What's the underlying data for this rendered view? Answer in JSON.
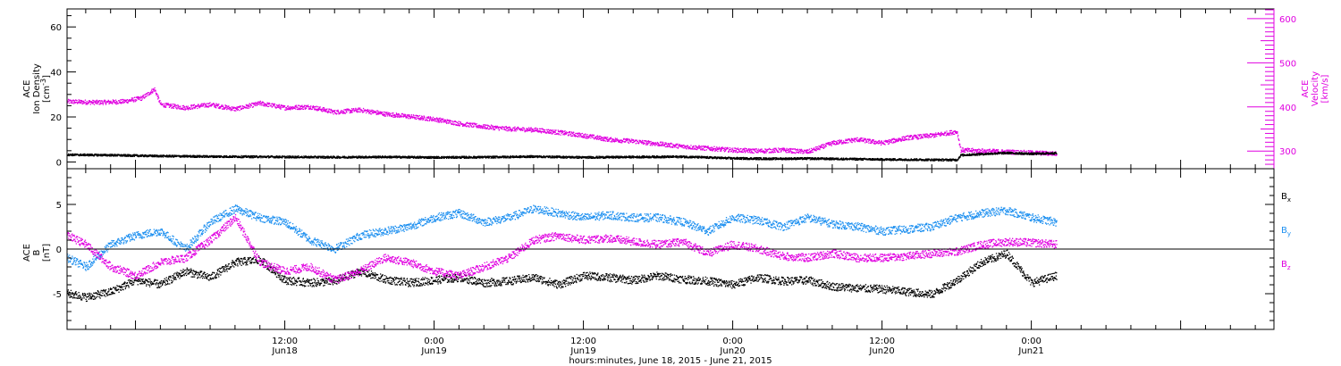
{
  "colors": {
    "black": "#000000",
    "magenta": "#e000e0",
    "blue": "#1e90f0"
  },
  "x_axis": {
    "title": "hours:minutes, June 18, 2015 - June 21, 2015",
    "range_hours": [
      -5.5,
      91.5
    ],
    "ticks": [
      {
        "h": 12,
        "time": "12:00",
        "date": "Jun18"
      },
      {
        "h": 24,
        "time": "0:00",
        "date": "Jun19"
      },
      {
        "h": 36,
        "time": "12:00",
        "date": "Jun19"
      },
      {
        "h": 48,
        "time": "0:00",
        "date": "Jun20"
      },
      {
        "h": 60,
        "time": "12:00",
        "date": "Jun20"
      },
      {
        "h": 72,
        "time": "0:00",
        "date": "Jun21"
      }
    ]
  },
  "chart_data": [
    {
      "type": "line",
      "panel": "top",
      "ylabel_lines": [
        "ACE",
        "Ion Density",
        "[cm^-3]"
      ],
      "ylabel_left": {
        "line1": "ACE",
        "line2": "Ion Density",
        "unit_prefix": "[cm",
        "unit_exp": "-3",
        "unit_suffix": "]"
      },
      "ylim": [
        -3,
        68
      ],
      "yticks": [
        0,
        20,
        40,
        60
      ],
      "y2label": {
        "line1": "ACE",
        "line2": "Velocity",
        "unit": "[km/s]"
      },
      "y2lim": [
        260,
        622
      ],
      "y2ticks": [
        300,
        400,
        500,
        600
      ],
      "series": [
        {
          "axis": "left",
          "color": "black",
          "x": [
            -5.5,
            -2,
            2,
            6,
            10,
            12,
            16,
            20,
            24,
            28,
            32,
            36,
            40,
            44,
            48,
            51,
            54,
            57,
            60,
            63,
            66,
            66.3,
            68,
            70,
            72,
            74
          ],
          "y": [
            3.2,
            3.0,
            2.6,
            2.4,
            2.3,
            2.2,
            2.1,
            2.2,
            2.0,
            2.1,
            2.4,
            2.0,
            2.2,
            2.3,
            1.6,
            1.4,
            1.5,
            1.3,
            1.1,
            1.0,
            0.9,
            3.0,
            3.5,
            4.0,
            3.6,
            3.9
          ]
        },
        {
          "axis": "right",
          "color": "magenta",
          "x": [
            -5.5,
            -3,
            -1,
            0.5,
            1.5,
            2,
            4,
            6,
            8,
            10,
            12,
            14,
            16,
            18,
            20,
            22,
            24,
            26,
            28,
            30,
            32,
            34,
            36,
            38,
            40,
            42,
            44,
            46,
            48,
            50,
            52,
            54,
            56,
            58,
            60,
            62,
            64,
            66,
            66.3,
            68,
            70,
            72,
            74
          ],
          "y": [
            412,
            410,
            412,
            420,
            440,
            405,
            398,
            405,
            395,
            408,
            398,
            400,
            388,
            393,
            384,
            378,
            372,
            362,
            355,
            350,
            348,
            342,
            335,
            326,
            322,
            316,
            310,
            306,
            302,
            300,
            302,
            298,
            318,
            326,
            318,
            330,
            335,
            344,
            302,
            300,
            298,
            296,
            294
          ]
        }
      ]
    },
    {
      "type": "line",
      "panel": "bottom",
      "ylabel": {
        "line1": "ACE",
        "line2": "B",
        "unit": "[nT]"
      },
      "ylim": [
        -9,
        9
      ],
      "yticks": [
        -5,
        0,
        5
      ],
      "zero_line": true,
      "series": [
        {
          "name_base": "B",
          "name_sub": "x",
          "color": "black",
          "x": [
            -5.5,
            -4,
            -2,
            0,
            2,
            4,
            6,
            8,
            10,
            12,
            14,
            16,
            18,
            20,
            22,
            24,
            26,
            28,
            30,
            32,
            34,
            36,
            38,
            40,
            42,
            44,
            46,
            48,
            50,
            52,
            54,
            56,
            58,
            60,
            62,
            64,
            66,
            68,
            70,
            72,
            74
          ],
          "y": [
            -5.0,
            -5.4,
            -4.8,
            -3.5,
            -4.0,
            -2.5,
            -3.2,
            -1.5,
            -1.2,
            -3.5,
            -3.8,
            -3.6,
            -2.5,
            -3.4,
            -3.8,
            -3.5,
            -3.2,
            -3.8,
            -3.6,
            -3.2,
            -4.0,
            -3.0,
            -3.2,
            -3.5,
            -3.0,
            -3.4,
            -3.6,
            -4.0,
            -3.2,
            -3.6,
            -3.5,
            -4.2,
            -4.4,
            -4.5,
            -4.8,
            -5.1,
            -3.5,
            -1.5,
            -0.5,
            -3.8,
            -3.0
          ]
        },
        {
          "name_base": "B",
          "name_sub": "y",
          "color": "blue",
          "x": [
            -5.5,
            -4,
            -2,
            0,
            2,
            4,
            6,
            8,
            10,
            12,
            14,
            16,
            18,
            20,
            22,
            24,
            26,
            28,
            30,
            32,
            34,
            36,
            38,
            40,
            42,
            44,
            46,
            48,
            50,
            52,
            54,
            56,
            58,
            60,
            62,
            64,
            66,
            68,
            70,
            72,
            74
          ],
          "y": [
            -1.0,
            -2.0,
            0.5,
            1.5,
            2.0,
            0.0,
            3.0,
            4.5,
            3.5,
            3.0,
            1.0,
            0.0,
            1.5,
            2.0,
            2.5,
            3.5,
            4.0,
            3.0,
            3.5,
            4.5,
            4.0,
            3.5,
            3.8,
            3.5,
            3.5,
            3.0,
            2.0,
            3.5,
            3.2,
            2.5,
            3.5,
            2.8,
            2.5,
            2.0,
            2.2,
            2.5,
            3.5,
            4.0,
            4.3,
            3.5,
            3.0
          ]
        },
        {
          "name_base": "B",
          "name_sub": "z",
          "color": "magenta",
          "x": [
            -5.5,
            -4,
            -2,
            0,
            2,
            4,
            6,
            8,
            10,
            12,
            14,
            16,
            18,
            20,
            22,
            24,
            26,
            28,
            30,
            32,
            34,
            36,
            38,
            40,
            42,
            44,
            46,
            48,
            50,
            52,
            54,
            56,
            58,
            60,
            62,
            64,
            66,
            68,
            70,
            72,
            74
          ],
          "y": [
            1.5,
            0.5,
            -2.0,
            -3.0,
            -1.5,
            -1.0,
            1.0,
            3.5,
            -1.5,
            -2.5,
            -2.0,
            -3.5,
            -2.5,
            -1.0,
            -1.5,
            -2.5,
            -3.0,
            -2.0,
            -1.0,
            1.0,
            1.5,
            1.0,
            1.2,
            0.8,
            0.5,
            0.8,
            -0.5,
            0.5,
            0.0,
            -0.8,
            -1.0,
            -0.5,
            -1.0,
            -1.0,
            -0.8,
            -0.5,
            -0.3,
            0.5,
            0.8,
            0.7,
            0.5
          ]
        }
      ]
    }
  ]
}
